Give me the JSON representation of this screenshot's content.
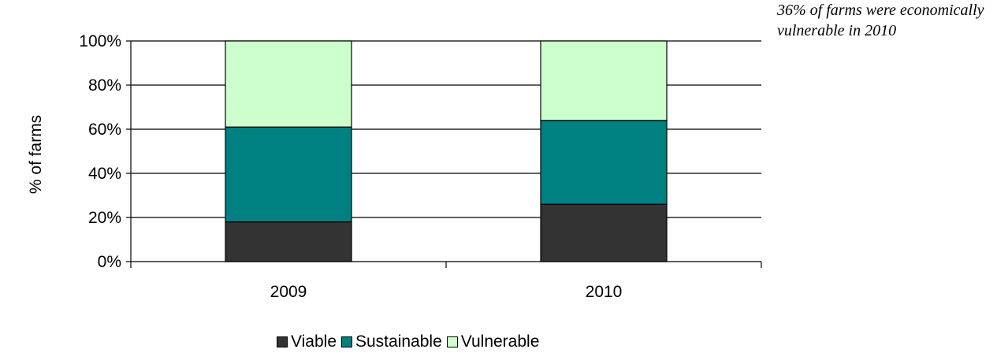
{
  "chart_data": {
    "type": "bar",
    "stacked": true,
    "percent_stacked": true,
    "categories": [
      "2009",
      "2010"
    ],
    "series": [
      {
        "name": "Viable",
        "values": [
          18,
          26
        ],
        "color": "#333333"
      },
      {
        "name": "Sustainable",
        "values": [
          43,
          38
        ],
        "color": "#008080"
      },
      {
        "name": "Vulnerable",
        "values": [
          39,
          36
        ],
        "color": "#ccffcc"
      }
    ],
    "ylabel": "% of farms",
    "ylim": [
      0,
      100
    ],
    "yticks": [
      "0%",
      "20%",
      "40%",
      "60%",
      "80%",
      "100%"
    ],
    "grid": true,
    "legend_position": "bottom",
    "annotation": "36% of farms were economically vulnerable in 2010"
  }
}
